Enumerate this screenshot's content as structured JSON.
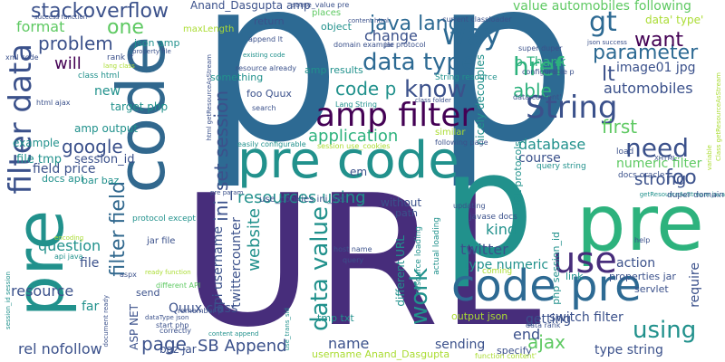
{
  "palette": {
    "navy": "#2d6a93",
    "indigo": "#472d7b",
    "violet": "#3b518b",
    "blue": "#31688e",
    "teal": "#21918c",
    "green": "#2db27d",
    "lime": "#5ec962",
    "yellowgreen": "#aadc32",
    "purple": "#440154",
    "gray": "#26828e"
  },
  "words": [
    {
      "text": "p",
      "color": "navy"
    },
    {
      "text": "p",
      "color": "navy"
    },
    {
      "text": "code",
      "color": "blue"
    },
    {
      "text": "URL",
      "color": "indigo"
    },
    {
      "text": "pre",
      "color": "teal"
    },
    {
      "text": "p",
      "color": "teal"
    },
    {
      "text": "pre",
      "color": "green"
    },
    {
      "text": "pre code",
      "color": "teal"
    },
    {
      "text": "filter data",
      "color": "violet"
    },
    {
      "text": "code pre",
      "color": "navy"
    },
    {
      "text": "amp filter",
      "color": "purple"
    },
    {
      "text": "String",
      "color": "violet"
    },
    {
      "text": "use",
      "color": "indigo"
    },
    {
      "text": "way",
      "color": "navy"
    },
    {
      "text": "data type",
      "color": "navy"
    },
    {
      "text": "know",
      "color": "violet"
    },
    {
      "text": "need",
      "color": "violet"
    },
    {
      "text": "href",
      "color": "green"
    },
    {
      "text": "stackoverflow",
      "color": "violet"
    },
    {
      "text": "filter field",
      "color": "blue"
    },
    {
      "text": "data value",
      "color": "teal"
    },
    {
      "text": "java lang",
      "color": "navy"
    },
    {
      "text": "gt",
      "color": "navy"
    },
    {
      "text": "parameter",
      "color": "navy"
    },
    {
      "text": "want",
      "color": "purple"
    },
    {
      "text": "using",
      "color": "teal"
    },
    {
      "text": "work",
      "color": "teal"
    },
    {
      "text": "lt",
      "color": "violet"
    },
    {
      "text": "one",
      "color": "lime"
    },
    {
      "text": "problem",
      "color": "violet"
    },
    {
      "text": "application",
      "color": "green"
    },
    {
      "text": "resources using",
      "color": "teal"
    },
    {
      "text": "ini_set session",
      "color": "violet"
    },
    {
      "text": "website",
      "color": "teal"
    },
    {
      "text": "foo",
      "color": "violet"
    },
    {
      "text": "first",
      "color": "lime"
    },
    {
      "text": "strong",
      "color": "violet"
    },
    {
      "text": "able",
      "color": "green"
    },
    {
      "text": "automobiles",
      "color": "violet"
    },
    {
      "text": "google",
      "color": "violet"
    },
    {
      "text": "will",
      "color": "purple"
    },
    {
      "text": "change",
      "color": "violet"
    },
    {
      "text": "code p",
      "color": "teal"
    },
    {
      "text": "ajax",
      "color": "lime"
    },
    {
      "text": "page",
      "color": "violet"
    },
    {
      "text": "SB Append",
      "color": "violet"
    },
    {
      "text": "format",
      "color": "lime"
    },
    {
      "text": "question",
      "color": "teal"
    },
    {
      "text": "resource",
      "color": "violet"
    },
    {
      "text": "rel nofollow",
      "color": "violet"
    },
    {
      "text": "new",
      "color": "teal"
    },
    {
      "text": "field price",
      "color": "violet"
    },
    {
      "text": "kind",
      "color": "teal"
    },
    {
      "text": "end",
      "color": "violet"
    },
    {
      "text": "name",
      "color": "violet"
    },
    {
      "text": "sending",
      "color": "violet"
    },
    {
      "text": "getting",
      "color": "violet"
    },
    {
      "text": "type string",
      "color": "violet"
    },
    {
      "text": "action",
      "color": "violet"
    },
    {
      "text": "require",
      "color": "violet"
    },
    {
      "text": "database",
      "color": "teal"
    },
    {
      "text": "numeric filter",
      "color": "lime"
    },
    {
      "text": "twitter",
      "color": "violet"
    },
    {
      "text": "type numeric",
      "color": "teal"
    },
    {
      "text": "course",
      "color": "violet"
    },
    {
      "text": "image01 jpg",
      "color": "violet"
    },
    {
      "text": "value automobiles",
      "color": "lime"
    },
    {
      "text": "following",
      "color": "lime"
    },
    {
      "text": "data' type'",
      "color": "yellowgreen"
    },
    {
      "text": "switch filter",
      "color": "violet"
    },
    {
      "text": "Quux class",
      "color": "violet"
    },
    {
      "text": "api username",
      "color": "violet"
    },
    {
      "text": "twittercounter",
      "color": "violet"
    },
    {
      "text": "file",
      "color": "violet"
    },
    {
      "text": "session_id",
      "color": "violet"
    },
    {
      "text": "file tmp",
      "color": "teal"
    },
    {
      "text": "example",
      "color": "teal"
    },
    {
      "text": "amp output",
      "color": "teal"
    },
    {
      "text": "target php",
      "color": "teal"
    },
    {
      "text": "something",
      "color": "teal"
    },
    {
      "text": "foo Quux",
      "color": "violet"
    },
    {
      "text": "docs api",
      "color": "teal"
    },
    {
      "text": "bar baz",
      "color": "teal"
    },
    {
      "text": "json amp",
      "color": "teal"
    },
    {
      "text": "Anand_Dasgupta amp",
      "color": "violet"
    },
    {
      "text": "object",
      "color": "teal"
    },
    {
      "text": "amp results",
      "color": "teal"
    },
    {
      "text": "p Thank",
      "color": "green"
    },
    {
      "text": "output json",
      "color": "yellowgreen"
    },
    {
      "text": "username Anand_Dasgupta",
      "color": "yellowgreen"
    },
    {
      "text": "different URL",
      "color": "teal"
    },
    {
      "text": "without",
      "color": "violet"
    },
    {
      "text": "path",
      "color": "violet"
    },
    {
      "text": "em",
      "color": "violet"
    },
    {
      "text": "ASP NET",
      "color": "violet"
    },
    {
      "text": "baz jar",
      "color": "violet"
    },
    {
      "text": "far",
      "color": "teal"
    },
    {
      "text": "send",
      "color": "violet"
    },
    {
      "text": "link",
      "color": "teal"
    },
    {
      "text": "specify",
      "color": "violet"
    },
    {
      "text": "return",
      "color": "violet"
    },
    {
      "text": "places",
      "color": "lime"
    },
    {
      "text": "jar file",
      "color": "violet"
    },
    {
      "text": "properties jar",
      "color": "violet"
    },
    {
      "text": "servlet",
      "color": "violet"
    },
    {
      "text": "tmp txt",
      "color": "teal"
    },
    {
      "text": "nicely decouples",
      "color": "teal"
    },
    {
      "text": "URL protocols",
      "color": "teal"
    },
    {
      "text": "php session_id",
      "color": "teal"
    },
    {
      "text": "use_cookies ini_set",
      "color": "violet"
    },
    {
      "text": "maxLength",
      "color": "yellowgreen"
    },
    {
      "text": "class html",
      "color": "teal"
    },
    {
      "text": "rank lt",
      "color": "violet"
    },
    {
      "text": "xml code",
      "color": "violet"
    },
    {
      "text": "html ajax",
      "color": "violet"
    },
    {
      "text": "protocol except",
      "color": "teal"
    },
    {
      "text": "load",
      "color": "violet"
    },
    {
      "text": "query string",
      "color": "teal"
    },
    {
      "text": "docs oracle",
      "color": "violet"
    },
    {
      "text": "javase docs",
      "color": "violet"
    },
    {
      "text": "getResourceAsStream java",
      "color": "teal"
    },
    {
      "text": "duper domain",
      "color": "violet"
    },
    {
      "text": "easily configurable",
      "color": "teal"
    },
    {
      "text": "session use_cookies",
      "color": "yellowgreen"
    },
    {
      "text": "append lt",
      "color": "violet"
    },
    {
      "text": "resource already",
      "color": "violet"
    },
    {
      "text": "existing code",
      "color": "teal"
    },
    {
      "text": "String resource",
      "color": "teal"
    },
    {
      "text": "Lang String",
      "color": "teal"
    },
    {
      "text": "search",
      "color": "violet"
    },
    {
      "text": "similar",
      "color": "yellowgreen"
    },
    {
      "text": "following page",
      "color": "violet"
    },
    {
      "text": "domain example",
      "color": "violet"
    },
    {
      "text": "jar protocol",
      "color": "violet"
    },
    {
      "text": "super duper",
      "color": "violet"
    },
    {
      "text": "configurable p",
      "color": "violet"
    },
    {
      "text": "data content'",
      "color": "violet"
    },
    {
      "text": "current classloader",
      "color": "violet"
    },
    {
      "text": "success function",
      "color": "violet"
    },
    {
      "text": "json success",
      "color": "violet"
    },
    {
      "text": "some_value pre",
      "color": "violet"
    },
    {
      "text": "host name",
      "color": "violet"
    },
    {
      "text": "query",
      "color": "violet"
    },
    {
      "text": "coming",
      "color": "yellowgreen"
    },
    {
      "text": "help",
      "color": "violet"
    },
    {
      "text": "data rank",
      "color": "violet"
    },
    {
      "text": "function content'",
      "color": "yellowgreen"
    },
    {
      "text": "correctly",
      "color": "violet"
    },
    {
      "text": "start php",
      "color": "violet"
    },
    {
      "text": "different API",
      "color": "lime"
    },
    {
      "text": "remember p",
      "color": "violet"
    },
    {
      "text": "aspx",
      "color": "violet"
    },
    {
      "text": "api java",
      "color": "teal"
    },
    {
      "text": "encoding",
      "color": "yellowgreen"
    },
    {
      "text": "updating",
      "color": "violet"
    },
    {
      "text": "actual loading",
      "color": "teal"
    },
    {
      "text": "resource loading",
      "color": "teal"
    },
    {
      "text": "pre param",
      "color": "violet"
    },
    {
      "text": "content html",
      "color": "violet"
    },
    {
      "text": "property file",
      "color": "violet"
    },
    {
      "text": "lang class",
      "color": "yellowgreen"
    },
    {
      "text": "class folder",
      "color": "violet"
    },
    {
      "text": "ready function",
      "color": "yellowgreen"
    },
    {
      "text": "document ready",
      "color": "violet"
    },
    {
      "text": "dataType json",
      "color": "violet"
    },
    {
      "text": "session_id session",
      "color": "teal"
    },
    {
      "text": "content append",
      "color": "teal"
    },
    {
      "text": "use_trans_sid",
      "color": "teal"
    },
    {
      "text": "XHTML",
      "color": "violet"
    },
    {
      "text": "variable",
      "color": "yellowgreen"
    },
    {
      "text": "Class getResourceAsStream",
      "color": "yellowgreen"
    },
    {
      "text": "html getResourceAsStream",
      "color": "violet"
    }
  ]
}
